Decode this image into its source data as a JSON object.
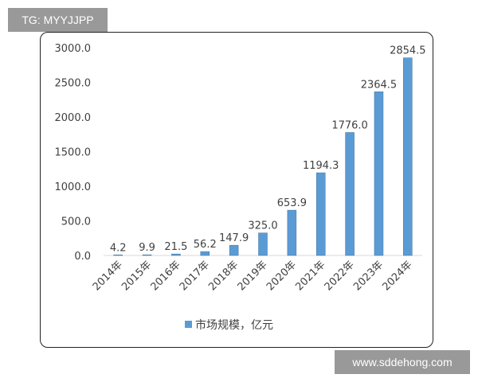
{
  "watermarks": {
    "top_left": "TG: MYYJJPP",
    "bottom_right": "www.sddehong.com"
  },
  "colors": {
    "bar": "#5b9bd5",
    "bar_edge": "#41719c",
    "watermark_bg": "#999999"
  },
  "chart_data": {
    "type": "bar",
    "categories": [
      "2014年",
      "2015年",
      "2016年",
      "2017年",
      "2018年",
      "2019年",
      "2020年",
      "2021年",
      "2022年",
      "2023年",
      "2024年"
    ],
    "series": [
      {
        "name": "市场规模，亿元",
        "values": [
          4.2,
          9.9,
          21.5,
          56.2,
          147.9,
          325.0,
          653.9,
          1194.3,
          1776.0,
          2364.5,
          2854.5
        ],
        "labels": [
          "4.2",
          "9.9",
          "21.5",
          "56.2",
          "147.9",
          "325.0",
          "653.9",
          "1194.3",
          "1776.0",
          "2364.5",
          "2854.5"
        ]
      }
    ],
    "yticks": [
      "0.0",
      "500.0",
      "1000.0",
      "1500.0",
      "2000.0",
      "2500.0",
      "3000.0"
    ],
    "ylim": [
      0,
      3000
    ],
    "grid": false,
    "legend": "bottom",
    "title": "",
    "xlabel": "",
    "ylabel": ""
  }
}
